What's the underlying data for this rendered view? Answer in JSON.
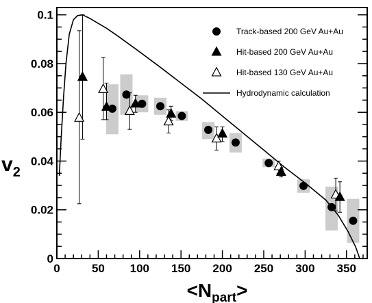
{
  "chart_data": {
    "type": "scatter",
    "xlabel": "<N",
    "xlabel_sub": "part",
    "xlabel_close": ">",
    "ylabel": "v",
    "ylabel_sub": "2",
    "xlim": [
      0,
      375
    ],
    "ylim": [
      0,
      0.103
    ],
    "x_ticks": [
      0,
      50,
      100,
      150,
      200,
      250,
      300,
      350
    ],
    "y_ticks": [
      0,
      0.02,
      0.04,
      0.06,
      0.08,
      0.1
    ],
    "x_tick_labels": [
      "0",
      "50",
      "100",
      "150",
      "200",
      "250",
      "300",
      "350"
    ],
    "y_tick_labels": [
      "0",
      "0.02",
      "0.04",
      "0.06",
      "0.08",
      "0.1"
    ],
    "grid": false,
    "legend_position": "top-right",
    "series": [
      {
        "name": "Track-based 200 GeV Au+Au",
        "marker": "filled-circle",
        "color": "#000000",
        "points": [
          {
            "x": 67,
            "y": 0.0615,
            "sys_lo": 0.051,
            "sys_hi": 0.0715
          },
          {
            "x": 84,
            "y": 0.0673,
            "sys_lo": 0.059,
            "sys_hi": 0.0756
          },
          {
            "x": 103,
            "y": 0.0635,
            "sys_lo": 0.06,
            "sys_hi": 0.067
          },
          {
            "x": 125,
            "y": 0.0625,
            "sys_lo": 0.059,
            "sys_hi": 0.066
          },
          {
            "x": 151,
            "y": 0.0585,
            "sys_lo": 0.0565,
            "sys_hi": 0.0605
          },
          {
            "x": 183,
            "y": 0.0528,
            "sys_lo": 0.049,
            "sys_hi": 0.056
          },
          {
            "x": 216,
            "y": 0.0476,
            "sys_lo": 0.0435,
            "sys_hi": 0.0515
          },
          {
            "x": 256,
            "y": 0.0392,
            "sys_lo": 0.0375,
            "sys_hi": 0.041
          },
          {
            "x": 298,
            "y": 0.0298,
            "sys_lo": 0.027,
            "sys_hi": 0.0325
          },
          {
            "x": 332,
            "y": 0.0211,
            "sys_lo": 0.0115,
            "sys_hi": 0.0295
          },
          {
            "x": 358,
            "y": 0.0155,
            "sys_lo": 0.0065,
            "sys_hi": 0.0245
          }
        ]
      },
      {
        "name": "Hit-based 200 GeV Au+Au",
        "marker": "filled-triangle",
        "color": "#000000",
        "points": [
          {
            "x": 31,
            "y": 0.0745,
            "err_lo": 0.049,
            "err_hi": 0.1
          },
          {
            "x": 60,
            "y": 0.0622,
            "err_lo": 0.057,
            "err_hi": 0.072
          },
          {
            "x": 95,
            "y": 0.0635,
            "err_lo": 0.06,
            "err_hi": 0.067
          },
          {
            "x": 138,
            "y": 0.0594,
            "err_lo": 0.0565,
            "err_hi": 0.0625
          },
          {
            "x": 200,
            "y": 0.0512,
            "err_lo": 0.048,
            "err_hi": 0.054
          },
          {
            "x": 271,
            "y": 0.0355,
            "err_lo": 0.0335,
            "err_hi": 0.0375
          },
          {
            "x": 342,
            "y": 0.0252,
            "err_lo": 0.019,
            "err_hi": 0.0315
          }
        ]
      },
      {
        "name": "Hit-based 130 GeV Au+Au",
        "marker": "open-triangle",
        "color": "#000000",
        "points": [
          {
            "x": 27,
            "y": 0.0577,
            "err_lo": 0.0225,
            "err_hi": 0.0935
          },
          {
            "x": 56,
            "y": 0.0695,
            "err_lo": 0.057,
            "err_hi": 0.0825
          },
          {
            "x": 88,
            "y": 0.0605,
            "err_lo": 0.053,
            "err_hi": 0.068
          },
          {
            "x": 135,
            "y": 0.0562,
            "err_lo": 0.0515,
            "err_hi": 0.061
          },
          {
            "x": 193,
            "y": 0.0492,
            "err_lo": 0.0445,
            "err_hi": 0.054
          },
          {
            "x": 268,
            "y": 0.0378,
            "err_lo": 0.035,
            "err_hi": 0.04
          },
          {
            "x": 337,
            "y": 0.0262,
            "err_lo": 0.0195,
            "err_hi": 0.033
          }
        ]
      },
      {
        "name": "Hydrodynamic calculation",
        "marker": "line",
        "color": "#000000",
        "points": [
          {
            "x": 3,
            "y": 0.034
          },
          {
            "x": 5,
            "y": 0.048
          },
          {
            "x": 8,
            "y": 0.066
          },
          {
            "x": 11,
            "y": 0.08
          },
          {
            "x": 15,
            "y": 0.092
          },
          {
            "x": 20,
            "y": 0.098
          },
          {
            "x": 25,
            "y": 0.0997
          },
          {
            "x": 31,
            "y": 0.1
          },
          {
            "x": 40,
            "y": 0.0985
          },
          {
            "x": 50,
            "y": 0.0965
          },
          {
            "x": 60,
            "y": 0.0945
          },
          {
            "x": 75,
            "y": 0.091
          },
          {
            "x": 100,
            "y": 0.0848
          },
          {
            "x": 125,
            "y": 0.0785
          },
          {
            "x": 150,
            "y": 0.072
          },
          {
            "x": 175,
            "y": 0.0655
          },
          {
            "x": 200,
            "y": 0.0585
          },
          {
            "x": 225,
            "y": 0.0515
          },
          {
            "x": 250,
            "y": 0.0445
          },
          {
            "x": 275,
            "y": 0.0375
          },
          {
            "x": 300,
            "y": 0.031
          },
          {
            "x": 325,
            "y": 0.024
          },
          {
            "x": 340,
            "y": 0.0178
          },
          {
            "x": 352,
            "y": 0.011
          },
          {
            "x": 361,
            "y": 0.0048
          },
          {
            "x": 366,
            "y": 0.0
          }
        ]
      }
    ],
    "systematic_band_color": "#cccccc"
  }
}
